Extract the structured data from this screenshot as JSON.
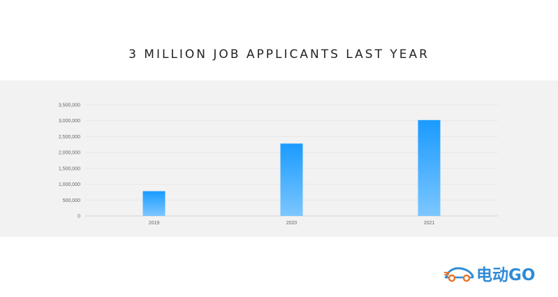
{
  "title": "3 MILLION JOB APPLICANTS LAST YEAR",
  "brand": {
    "name": "电动GO",
    "accent": "#2f8bd6",
    "secondary": "#e9762b",
    "icon": "car-icon"
  },
  "colors": {
    "bar_top": "#1a9bff",
    "bar_bottom": "#7cc6ff",
    "band": "#f2f2f2"
  },
  "chart_data": {
    "type": "bar",
    "categories": [
      "2019",
      "2020",
      "2021"
    ],
    "values": [
      780000,
      2280000,
      3020000
    ],
    "ylim": [
      0,
      3500000
    ],
    "yticks": [
      0,
      500000,
      1000000,
      1500000,
      2000000,
      2500000,
      3000000,
      3500000
    ],
    "ytick_labels": [
      "0",
      "500,000",
      "1,000,000",
      "1,500,000",
      "2,000,000",
      "2,500,000",
      "3,000,000",
      "3,500,000"
    ],
    "xlabel": "",
    "ylabel": "",
    "grid": true,
    "legend": "none"
  }
}
